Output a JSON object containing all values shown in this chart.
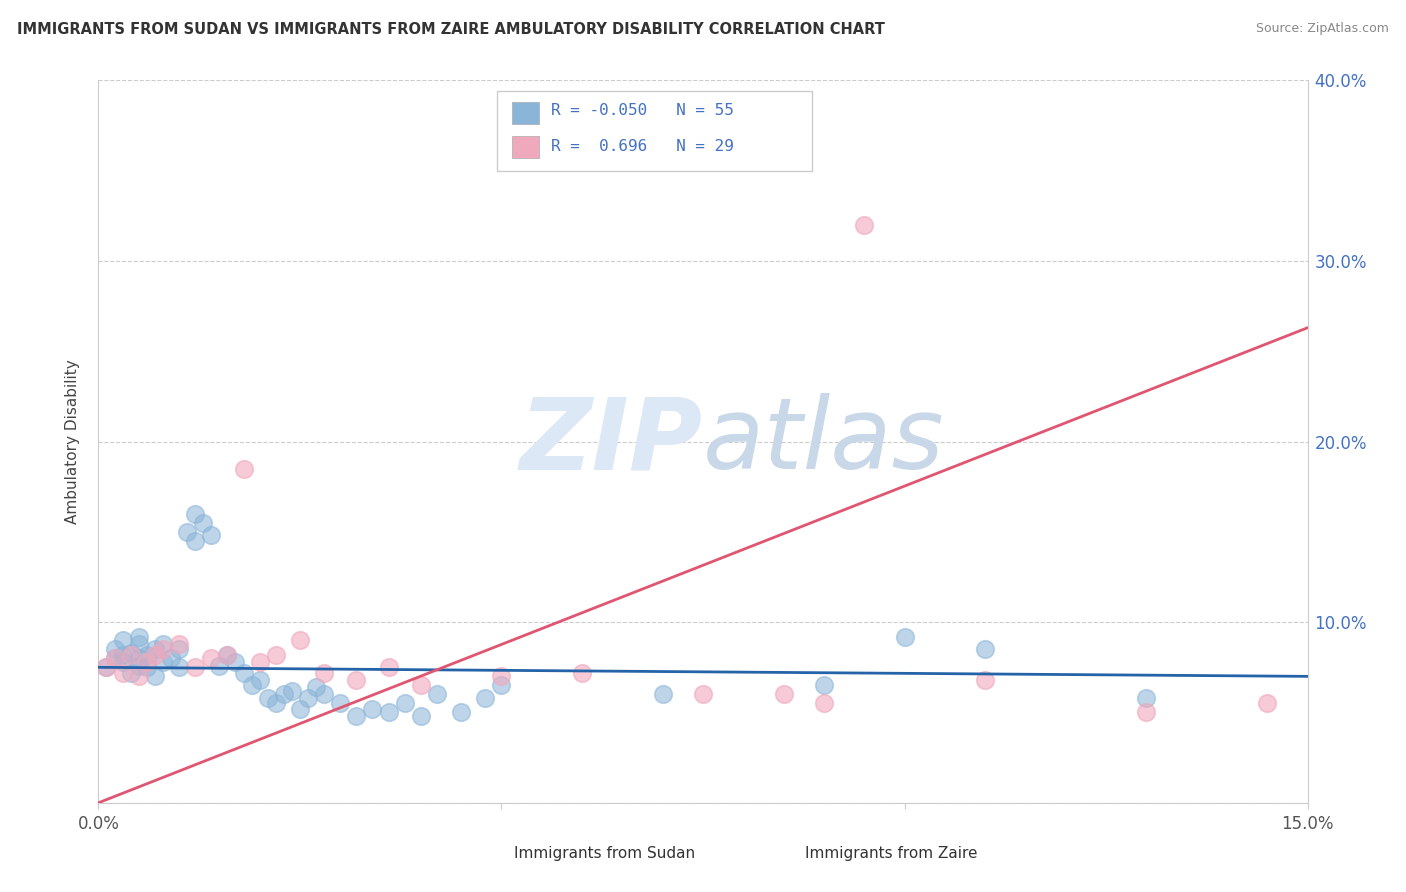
{
  "title": "IMMIGRANTS FROM SUDAN VS IMMIGRANTS FROM ZAIRE AMBULATORY DISABILITY CORRELATION CHART",
  "source": "Source: ZipAtlas.com",
  "ylabel": "Ambulatory Disability",
  "xlim": [
    0.0,
    0.15
  ],
  "ylim": [
    0.0,
    0.4
  ],
  "sudan_R": -0.05,
  "sudan_N": 55,
  "zaire_R": 0.696,
  "zaire_N": 29,
  "sudan_color": "#8ab4d8",
  "zaire_color": "#f0a8bc",
  "sudan_line_color": "#2563a8",
  "zaire_line_color": "#e05570",
  "legend_label_sudan": "Immigrants from Sudan",
  "legend_label_zaire": "Immigrants from Zaire",
  "watermark_zip": "ZIP",
  "watermark_atlas": "atlas",
  "sudan_x": [
    0.001,
    0.002,
    0.002,
    0.003,
    0.003,
    0.003,
    0.004,
    0.004,
    0.005,
    0.005,
    0.005,
    0.005,
    0.006,
    0.006,
    0.007,
    0.007,
    0.008,
    0.008,
    0.009,
    0.01,
    0.01,
    0.011,
    0.012,
    0.012,
    0.013,
    0.014,
    0.015,
    0.016,
    0.017,
    0.018,
    0.019,
    0.02,
    0.021,
    0.022,
    0.023,
    0.024,
    0.025,
    0.026,
    0.027,
    0.028,
    0.03,
    0.032,
    0.034,
    0.036,
    0.038,
    0.04,
    0.042,
    0.045,
    0.048,
    0.05,
    0.07,
    0.09,
    0.1,
    0.11,
    0.13
  ],
  "sudan_y": [
    0.075,
    0.08,
    0.085,
    0.078,
    0.082,
    0.09,
    0.083,
    0.072,
    0.076,
    0.08,
    0.088,
    0.092,
    0.075,
    0.082,
    0.07,
    0.085,
    0.078,
    0.088,
    0.08,
    0.075,
    0.085,
    0.15,
    0.16,
    0.145,
    0.155,
    0.148,
    0.076,
    0.082,
    0.078,
    0.072,
    0.065,
    0.068,
    0.058,
    0.055,
    0.06,
    0.062,
    0.052,
    0.058,
    0.064,
    0.06,
    0.055,
    0.048,
    0.052,
    0.05,
    0.055,
    0.048,
    0.06,
    0.05,
    0.058,
    0.065,
    0.06,
    0.065,
    0.092,
    0.085,
    0.058
  ],
  "zaire_x": [
    0.001,
    0.002,
    0.003,
    0.004,
    0.005,
    0.006,
    0.007,
    0.008,
    0.01,
    0.012,
    0.014,
    0.016,
    0.018,
    0.02,
    0.022,
    0.025,
    0.028,
    0.032,
    0.036,
    0.04,
    0.05,
    0.06,
    0.075,
    0.085,
    0.09,
    0.095,
    0.11,
    0.13,
    0.145
  ],
  "zaire_y": [
    0.075,
    0.08,
    0.072,
    0.082,
    0.07,
    0.078,
    0.082,
    0.085,
    0.088,
    0.075,
    0.08,
    0.082,
    0.185,
    0.078,
    0.082,
    0.09,
    0.072,
    0.068,
    0.075,
    0.065,
    0.07,
    0.072,
    0.06,
    0.06,
    0.055,
    0.32,
    0.068,
    0.05,
    0.055
  ],
  "sudan_line_y0": 0.075,
  "sudan_line_y1": 0.07,
  "zaire_line_y0": 0.0,
  "zaire_line_y1": 0.263
}
